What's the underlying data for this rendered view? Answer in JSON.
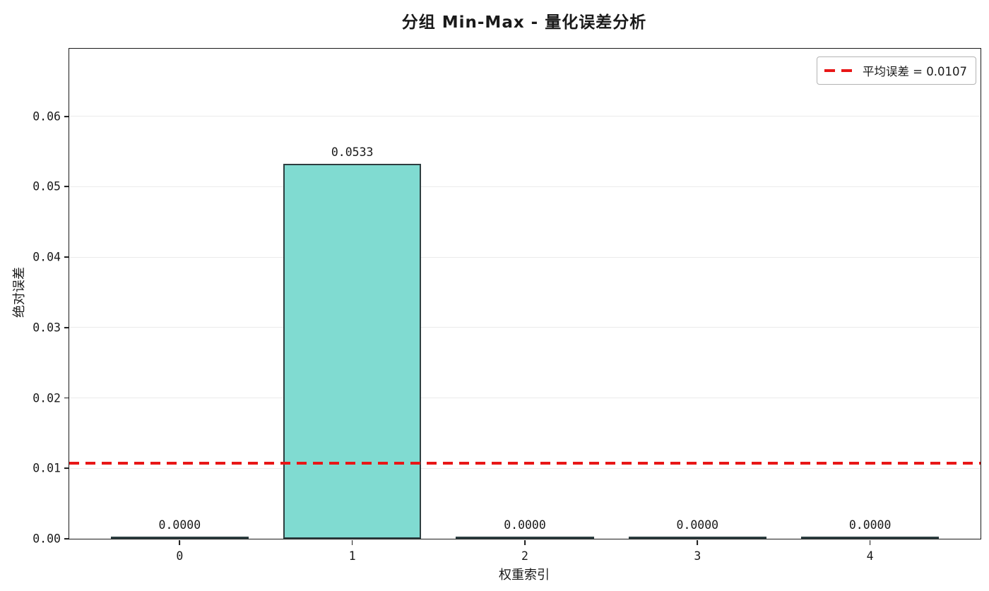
{
  "title": "分组 Min-Max - 量化误差分析",
  "colors": {
    "bar_fill": "#80dbd1",
    "bar_edge": "#2d3e40",
    "mean_line": "#e81717",
    "grid": "#ebebeb",
    "spine": "#1a1a1a",
    "legend_border": "#b3b3b3"
  },
  "chart_data": {
    "type": "bar",
    "title": "分组 Min-Max - 量化误差分析",
    "xlabel": "权重索引",
    "ylabel": "绝对误差",
    "categories": [
      "0",
      "1",
      "2",
      "3",
      "4"
    ],
    "values": [
      0.0,
      0.0533,
      0.0,
      0.0,
      0.0
    ],
    "bar_value_labels": [
      "0.0000",
      "0.0533",
      "0.0000",
      "0.0000",
      "0.0000"
    ],
    "bar_width": 0.8,
    "xlim": [
      -0.64,
      4.64
    ],
    "ylim": [
      0,
      0.0696
    ],
    "yticks": [
      0.0,
      0.01,
      0.02,
      0.03,
      0.04,
      0.05,
      0.06
    ],
    "ytick_labels": [
      "0.00",
      "0.01",
      "0.02",
      "0.03",
      "0.04",
      "0.05",
      "0.06"
    ],
    "grid": "horizontal",
    "legend_position": "upper right",
    "mean_line": {
      "value": 0.0107,
      "style": "dashed",
      "label": "平均误差 = 0.0107"
    }
  }
}
